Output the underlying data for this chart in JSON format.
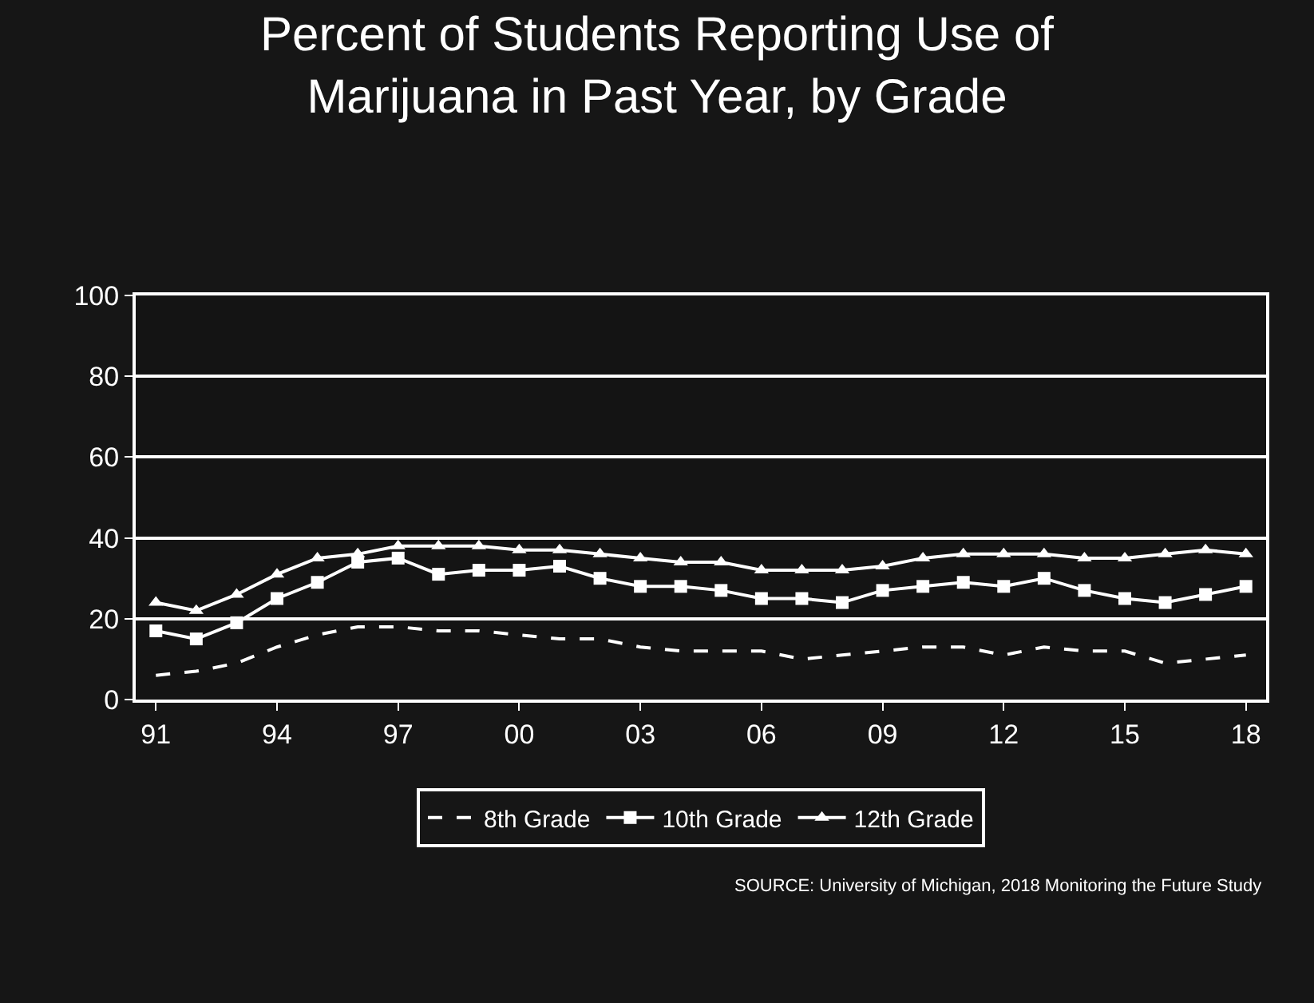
{
  "chart_data": {
    "type": "line",
    "title": "Percent of Students Reporting Use of\nMarijuana in Past Year, by Grade",
    "categories": [
      "91",
      null,
      null,
      "94",
      null,
      null,
      "97",
      null,
      null,
      "00",
      null,
      null,
      "03",
      null,
      null,
      "06",
      null,
      null,
      "09",
      null,
      null,
      "12",
      null,
      null,
      "15",
      null,
      null,
      "18"
    ],
    "series": [
      {
        "name": "8th Grade",
        "color": "#ffffff",
        "marker": "none",
        "line_style": "dashed",
        "values": [
          6,
          7,
          9,
          13,
          16,
          18,
          18,
          17,
          17,
          16,
          15,
          15,
          13,
          12,
          12,
          12,
          10,
          11,
          12,
          13,
          13,
          11,
          13,
          12,
          12,
          9,
          10,
          11
        ]
      },
      {
        "name": "10th Grade",
        "color": "#ffffff",
        "marker": "square",
        "values": [
          17,
          15,
          19,
          25,
          29,
          34,
          35,
          31,
          32,
          32,
          33,
          30,
          28,
          28,
          27,
          25,
          25,
          24,
          27,
          28,
          29,
          28,
          30,
          27,
          25,
          24,
          26,
          28
        ]
      },
      {
        "name": "12th Grade",
        "color": "#ffffff",
        "marker": "triangle",
        "values": [
          24,
          22,
          26,
          31,
          35,
          36,
          38,
          38,
          38,
          37,
          37,
          36,
          35,
          34,
          34,
          32,
          32,
          32,
          33,
          35,
          36,
          36,
          36,
          35,
          35,
          36,
          37,
          36
        ]
      }
    ],
    "ylim": [
      0,
      100
    ],
    "yticks": [
      0,
      20,
      40,
      60,
      80,
      100
    ],
    "grid": "y",
    "legend": "bottom",
    "line_style": "solid",
    "annotations": [
      "SOURCE: University of Michigan, 2018 Monitoring the Future Study"
    ]
  }
}
